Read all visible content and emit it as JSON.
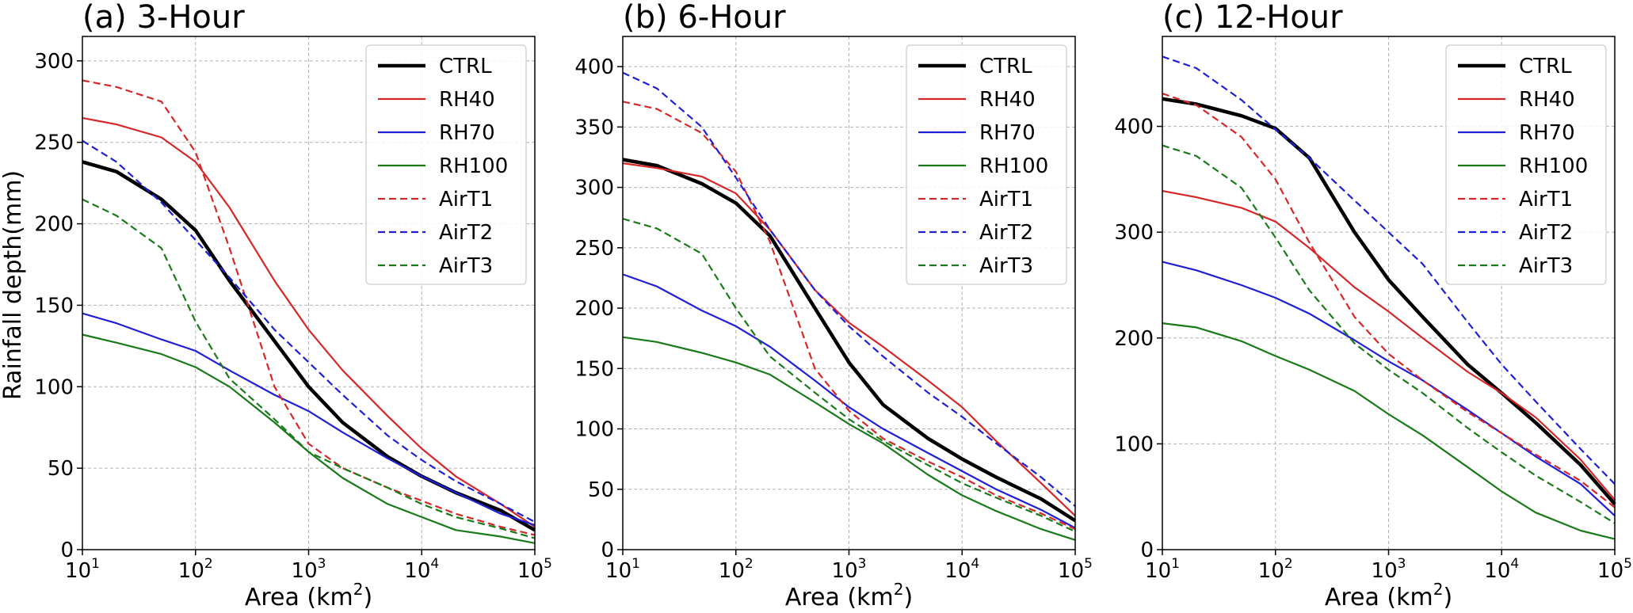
{
  "figure": {
    "ylabel": "Rainfall depth(mm)",
    "xlabel_text": "Area (km",
    "xlabel_sup": "2",
    "xlabel_close": ")"
  },
  "chart_data": [
    {
      "type": "line",
      "title": "(a) 3-Hour",
      "xscale": "log",
      "xlim": [
        10,
        100000
      ],
      "ylim": [
        0,
        315
      ],
      "yticks": [
        0,
        50,
        100,
        150,
        200,
        250,
        300
      ],
      "xticks": [
        {
          "base": "10",
          "exp": "1"
        },
        {
          "base": "10",
          "exp": "2"
        },
        {
          "base": "10",
          "exp": "3"
        },
        {
          "base": "10",
          "exp": "4"
        },
        {
          "base": "10",
          "exp": "5"
        }
      ],
      "grid": true,
      "legend_position": "top-right",
      "series": [
        {
          "name": "CTRL",
          "color": "#000000",
          "dash": "solid",
          "x": [
            10,
            20,
            50,
            100,
            200,
            500,
            1000,
            2000,
            5000,
            10000,
            20000,
            50000,
            100000
          ],
          "y": [
            238,
            232,
            215,
            196,
            165,
            128,
            100,
            78,
            57,
            45,
            35,
            24,
            12
          ]
        },
        {
          "name": "RH40",
          "color": "#d62728",
          "dash": "solid",
          "x": [
            10,
            20,
            50,
            100,
            200,
            500,
            1000,
            2000,
            5000,
            10000,
            20000,
            50000,
            100000
          ],
          "y": [
            265,
            261,
            253,
            238,
            210,
            165,
            135,
            110,
            82,
            62,
            45,
            28,
            14
          ]
        },
        {
          "name": "RH70",
          "color": "#1f1fd6",
          "dash": "solid",
          "x": [
            10,
            20,
            50,
            100,
            200,
            500,
            1000,
            2000,
            5000,
            10000,
            20000,
            50000,
            100000
          ],
          "y": [
            145,
            139,
            129,
            122,
            110,
            95,
            85,
            72,
            56,
            45,
            35,
            22,
            15
          ]
        },
        {
          "name": "RH100",
          "color": "#1a7a1a",
          "dash": "solid",
          "x": [
            10,
            20,
            50,
            100,
            200,
            500,
            1000,
            2000,
            5000,
            10000,
            20000,
            50000,
            100000
          ],
          "y": [
            132,
            127,
            120,
            112,
            100,
            78,
            60,
            44,
            28,
            20,
            12,
            8,
            4
          ]
        },
        {
          "name": "AirT1",
          "color": "#d62728",
          "dash": "dashed",
          "x": [
            10,
            20,
            50,
            100,
            200,
            500,
            1000,
            2000,
            5000,
            10000,
            20000,
            50000,
            100000
          ],
          "y": [
            288,
            284,
            275,
            244,
            185,
            100,
            65,
            50,
            38,
            30,
            22,
            14,
            9
          ]
        },
        {
          "name": "AirT2",
          "color": "#1f1fd6",
          "dash": "dashed",
          "x": [
            10,
            20,
            50,
            100,
            200,
            500,
            1000,
            2000,
            5000,
            10000,
            20000,
            50000,
            100000
          ],
          "y": [
            251,
            238,
            213,
            190,
            167,
            135,
            115,
            95,
            70,
            55,
            42,
            28,
            17
          ]
        },
        {
          "name": "AirT3",
          "color": "#1a7a1a",
          "dash": "dashed",
          "x": [
            10,
            20,
            50,
            100,
            200,
            500,
            1000,
            2000,
            5000,
            10000,
            20000,
            50000,
            100000
          ],
          "y": [
            215,
            205,
            185,
            140,
            105,
            80,
            60,
            50,
            38,
            28,
            20,
            13,
            7
          ]
        }
      ]
    },
    {
      "type": "line",
      "title": "(b) 6-Hour",
      "xscale": "log",
      "xlim": [
        10,
        100000
      ],
      "ylim": [
        0,
        425
      ],
      "yticks": [
        0,
        50,
        100,
        150,
        200,
        250,
        300,
        350,
        400
      ],
      "xticks": [
        {
          "base": "10",
          "exp": "1"
        },
        {
          "base": "10",
          "exp": "2"
        },
        {
          "base": "10",
          "exp": "3"
        },
        {
          "base": "10",
          "exp": "4"
        },
        {
          "base": "10",
          "exp": "5"
        }
      ],
      "grid": true,
      "legend_position": "top-right",
      "series": [
        {
          "name": "CTRL",
          "color": "#000000",
          "dash": "solid",
          "x": [
            10,
            20,
            50,
            100,
            200,
            500,
            1000,
            2000,
            5000,
            10000,
            20000,
            50000,
            100000
          ],
          "y": [
            323,
            318,
            303,
            287,
            260,
            200,
            155,
            120,
            92,
            75,
            60,
            42,
            24
          ]
        },
        {
          "name": "RH40",
          "color": "#d62728",
          "dash": "solid",
          "x": [
            10,
            20,
            50,
            100,
            200,
            500,
            1000,
            2000,
            5000,
            10000,
            20000,
            50000,
            100000
          ],
          "y": [
            320,
            316,
            309,
            295,
            265,
            215,
            188,
            168,
            140,
            118,
            90,
            55,
            28
          ]
        },
        {
          "name": "RH70",
          "color": "#1f1fd6",
          "dash": "solid",
          "x": [
            10,
            20,
            50,
            100,
            200,
            500,
            1000,
            2000,
            5000,
            10000,
            20000,
            50000,
            100000
          ],
          "y": [
            228,
            218,
            198,
            185,
            168,
            140,
            118,
            100,
            80,
            65,
            50,
            33,
            18
          ]
        },
        {
          "name": "RH100",
          "color": "#1a7a1a",
          "dash": "solid",
          "x": [
            10,
            20,
            50,
            100,
            200,
            500,
            1000,
            2000,
            5000,
            10000,
            20000,
            50000,
            100000
          ],
          "y": [
            176,
            172,
            163,
            155,
            145,
            122,
            104,
            88,
            62,
            45,
            32,
            17,
            8
          ]
        },
        {
          "name": "AirT1",
          "color": "#d62728",
          "dash": "dashed",
          "x": [
            10,
            20,
            50,
            100,
            200,
            500,
            1000,
            2000,
            5000,
            10000,
            20000,
            50000,
            100000
          ],
          "y": [
            371,
            365,
            345,
            313,
            255,
            150,
            115,
            92,
            73,
            60,
            45,
            30,
            17
          ]
        },
        {
          "name": "AirT2",
          "color": "#1f1fd6",
          "dash": "dashed",
          "x": [
            10,
            20,
            50,
            100,
            200,
            500,
            1000,
            2000,
            5000,
            10000,
            20000,
            50000,
            100000
          ],
          "y": [
            395,
            382,
            350,
            308,
            265,
            215,
            185,
            160,
            130,
            110,
            88,
            60,
            36
          ]
        },
        {
          "name": "AirT3",
          "color": "#1a7a1a",
          "dash": "dashed",
          "x": [
            10,
            20,
            50,
            100,
            200,
            500,
            1000,
            2000,
            5000,
            10000,
            20000,
            50000,
            100000
          ],
          "y": [
            274,
            266,
            245,
            200,
            160,
            130,
            108,
            90,
            70,
            55,
            43,
            28,
            15
          ]
        }
      ]
    },
    {
      "type": "line",
      "title": "(c) 12-Hour",
      "xscale": "log",
      "xlim": [
        10,
        100000
      ],
      "ylim": [
        0,
        485
      ],
      "yticks": [
        0,
        100,
        200,
        300,
        400
      ],
      "xticks": [
        {
          "base": "10",
          "exp": "1"
        },
        {
          "base": "10",
          "exp": "2"
        },
        {
          "base": "10",
          "exp": "3"
        },
        {
          "base": "10",
          "exp": "4"
        },
        {
          "base": "10",
          "exp": "5"
        }
      ],
      "grid": true,
      "legend_position": "top-right",
      "series": [
        {
          "name": "CTRL",
          "color": "#000000",
          "dash": "solid",
          "x": [
            10,
            20,
            50,
            100,
            200,
            500,
            1000,
            2000,
            5000,
            10000,
            20000,
            50000,
            100000
          ],
          "y": [
            426,
            421,
            410,
            398,
            370,
            300,
            255,
            220,
            175,
            148,
            120,
            80,
            43
          ]
        },
        {
          "name": "RH40",
          "color": "#d62728",
          "dash": "solid",
          "x": [
            10,
            20,
            50,
            100,
            200,
            500,
            1000,
            2000,
            5000,
            10000,
            20000,
            50000,
            100000
          ],
          "y": [
            339,
            333,
            323,
            310,
            285,
            248,
            225,
            200,
            168,
            148,
            125,
            85,
            47
          ]
        },
        {
          "name": "RH70",
          "color": "#1f1fd6",
          "dash": "solid",
          "x": [
            10,
            20,
            50,
            100,
            200,
            500,
            1000,
            2000,
            5000,
            10000,
            20000,
            50000,
            100000
          ],
          "y": [
            272,
            264,
            250,
            238,
            223,
            198,
            178,
            160,
            132,
            110,
            88,
            62,
            32
          ]
        },
        {
          "name": "RH100",
          "color": "#1a7a1a",
          "dash": "solid",
          "x": [
            10,
            20,
            50,
            100,
            200,
            500,
            1000,
            2000,
            5000,
            10000,
            20000,
            50000,
            100000
          ],
          "y": [
            214,
            210,
            197,
            183,
            170,
            150,
            128,
            108,
            78,
            55,
            35,
            18,
            10
          ]
        },
        {
          "name": "AirT1",
          "color": "#d62728",
          "dash": "dashed",
          "x": [
            10,
            20,
            50,
            100,
            200,
            500,
            1000,
            2000,
            5000,
            10000,
            20000,
            50000,
            100000
          ],
          "y": [
            431,
            420,
            390,
            350,
            290,
            220,
            185,
            160,
            130,
            110,
            90,
            65,
            40
          ]
        },
        {
          "name": "AirT2",
          "color": "#1f1fd6",
          "dash": "dashed",
          "x": [
            10,
            20,
            50,
            100,
            200,
            500,
            1000,
            2000,
            5000,
            10000,
            20000,
            50000,
            100000
          ],
          "y": [
            466,
            455,
            425,
            397,
            370,
            330,
            300,
            270,
            215,
            175,
            140,
            95,
            62
          ]
        },
        {
          "name": "AirT3",
          "color": "#1a7a1a",
          "dash": "dashed",
          "x": [
            10,
            20,
            50,
            100,
            200,
            500,
            1000,
            2000,
            5000,
            10000,
            20000,
            50000,
            100000
          ],
          "y": [
            382,
            372,
            342,
            295,
            245,
            195,
            170,
            148,
            115,
            92,
            70,
            45,
            25
          ]
        }
      ]
    }
  ]
}
